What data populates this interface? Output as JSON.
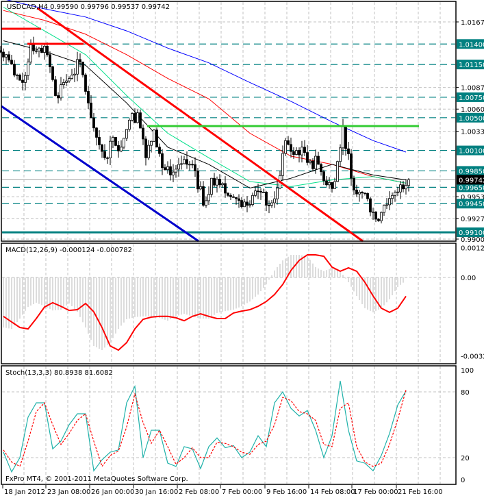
{
  "window": {
    "symbol_header": "USDCAD,H4  0.99590 0.99796 0.99537 0.99742",
    "copyright": "FxPro MT4, © 2001-2011 MetaQuotes Software Corp."
  },
  "colors": {
    "level_box": "#008080",
    "current_price_box": "#000000",
    "ma_blue": "#0000ff",
    "ma_red": "#ff0000",
    "ma_green": "#00e08a",
    "ma_black": "#000000",
    "trendline_red": "#ff0000",
    "trendline_blue": "#0000cc",
    "resistance_green": "#33cc33",
    "macd_hist": "#b8b8b8",
    "macd_signal": "#ff0000",
    "stoch_main": "#20b2aa",
    "stoch_signal": "#ff0000"
  },
  "chart_data": [
    {
      "type": "candlestick",
      "title": "USDCAD,H4",
      "ohlc_last": {
        "open": 0.9959,
        "high": 0.99796,
        "low": 0.99537,
        "close": 0.99742
      },
      "ylim": [
        0.99,
        1.0167
      ],
      "y_ticks": [
        "1.01670",
        "1.00870",
        "1.00605",
        "1.00335",
        "0.99535",
        "0.99270",
        "0.99000"
      ],
      "levels": [
        "1.01400",
        "1.01150",
        "1.00750",
        "1.00500",
        "1.00100",
        "0.99850",
        "0.99650",
        "0.99450",
        "0.99100"
      ],
      "current_price": "0.99742",
      "x_ticks": [
        "18 Jan 2012",
        "23 Jan 08:00",
        "26 Jan 00:00",
        "30 Jan 16:00",
        "2 Feb 08:00",
        "7 Feb 00:00",
        "9 Feb 16:00",
        "14 Feb 08:00",
        "17 Feb 00:00",
        "21 Feb 16:00"
      ],
      "close": [
        1.0127,
        1.0102,
        1.0093,
        1.0139,
        1.0135,
        1.0127,
        1.0077,
        1.0093,
        1.0102,
        1.0118,
        1.0068,
        1.0026,
        1.0001,
        1.0026,
        1.0014,
        1.0047,
        1.0056,
        1.0001,
        1.0035,
        0.9989,
        0.998,
        0.9993,
        0.9993,
        0.9985,
        0.9943,
        0.9976,
        0.9968,
        0.9955,
        0.9951,
        0.9947,
        0.9955,
        0.9959,
        0.9943,
        0.9964,
        1.0022,
        1.0005,
        1.0014,
        0.9997,
        0.9993,
        0.9968,
        0.9972,
        1.0039,
        0.9976,
        0.9959,
        0.9951,
        0.9926,
        0.9943,
        0.9955,
        0.9968,
        0.99742
      ],
      "moving_averages": {
        "bars": [
          0,
          5,
          10,
          15,
          20,
          25,
          30,
          35,
          40,
          45,
          49
        ],
        "series": [
          {
            "color": "blue",
            "values": [
              1.0195,
              1.0183,
              1.0173,
              1.0156,
              1.0135,
              1.0117,
              1.0093,
              1.007,
              1.0045,
              1.0022,
              1.0008
            ]
          },
          {
            "color": "red",
            "values": [
              1.0181,
              1.0169,
              1.0152,
              1.0127,
              1.0098,
              1.0073,
              1.0031,
              1.0003,
              0.9993,
              0.9978,
              0.997
            ]
          },
          {
            "color": "green",
            "values": [
              1.0185,
              1.0156,
              1.0127,
              1.0077,
              1.0031,
              1.0001,
              0.9972,
              0.9966,
              0.9974,
              0.9978,
              0.997
            ]
          },
          {
            "color": "black",
            "values": [
              1.0144,
              1.0131,
              1.0114,
              1.0068,
              1.0014,
              0.9993,
              0.9964,
              0.9976,
              0.9993,
              0.998,
              0.9974
            ]
          }
        ]
      }
    },
    {
      "type": "bar+line",
      "title": "MACD(12,26,9) -0.000124 -0.000782",
      "ylim": [
        -0.00326,
        0.00124
      ],
      "y_ticks": [
        "0.00124",
        "0.00",
        "-0.00326"
      ],
      "main": [
        -0.00208,
        -0.00214,
        -0.00171,
        -0.00123,
        -0.00105,
        -0.0012,
        -0.00137,
        -0.00134,
        -0.00108,
        -0.00143,
        -0.00208,
        -0.00285,
        -0.00302,
        -0.00271,
        -0.00214,
        -0.00174,
        -0.00165,
        -0.00162,
        -0.00162,
        -0.00168,
        -0.0018,
        -0.00162,
        -0.00151,
        -0.00162,
        -0.00171,
        -0.00171,
        -0.00148,
        -0.0014,
        -0.00134,
        -0.0012,
        -0.001,
        -0.00071,
        -0.00029,
        0.00029,
        0.00071,
        0.00094,
        0.00094,
        0.00088,
        0.00043,
        0.00026,
        0.0004,
        0.00026,
        -0.0002,
        -0.00077,
        -0.00128,
        -0.00145,
        -0.00128,
        -0.00091,
        -0.0004,
        -0.000124
      ],
      "signal": [
        -0.00162,
        -0.00185,
        -0.00208,
        -0.00214,
        -0.00171,
        -0.00123,
        -0.00105,
        -0.0012,
        -0.00137,
        -0.00134,
        -0.00108,
        -0.00143,
        -0.00208,
        -0.00285,
        -0.00302,
        -0.00271,
        -0.00214,
        -0.00174,
        -0.00165,
        -0.00162,
        -0.00162,
        -0.00168,
        -0.0018,
        -0.00162,
        -0.00151,
        -0.00162,
        -0.00171,
        -0.00171,
        -0.00148,
        -0.0014,
        -0.00134,
        -0.0012,
        -0.001,
        -0.00071,
        -0.00029,
        0.00029,
        0.00071,
        0.00094,
        0.00094,
        0.00088,
        0.00043,
        0.00026,
        0.0004,
        0.00026,
        -0.0002,
        -0.00077,
        -0.00128,
        -0.00145,
        -0.00128,
        -0.000782
      ]
    },
    {
      "type": "line",
      "title": "Stoch(13,3,3) 80.8938 81.6082",
      "ylim": [
        0,
        100
      ],
      "y_ticks": [
        "100",
        "80",
        "20",
        "0"
      ],
      "main": [
        25,
        7,
        20,
        57,
        70,
        70,
        28,
        35,
        50,
        60,
        60,
        8,
        18,
        25,
        27,
        70,
        85,
        20,
        45,
        45,
        15,
        12,
        30,
        28,
        10,
        30,
        38,
        29,
        31,
        20,
        25,
        40,
        30,
        70,
        80,
        65,
        58,
        63,
        45,
        20,
        40,
        90,
        45,
        17,
        15,
        8,
        22,
        42,
        68,
        80.8938
      ],
      "signal": [
        27,
        16,
        12,
        35,
        62,
        70,
        50,
        32,
        42,
        54,
        60,
        35,
        12,
        22,
        26,
        48,
        78,
        52,
        33,
        45,
        30,
        14,
        20,
        29,
        20,
        20,
        34,
        33,
        30,
        25,
        23,
        32,
        35,
        50,
        75,
        72,
        62,
        60,
        54,
        32,
        30,
        65,
        70,
        30,
        16,
        12,
        15,
        32,
        55,
        81.6082
      ]
    }
  ]
}
